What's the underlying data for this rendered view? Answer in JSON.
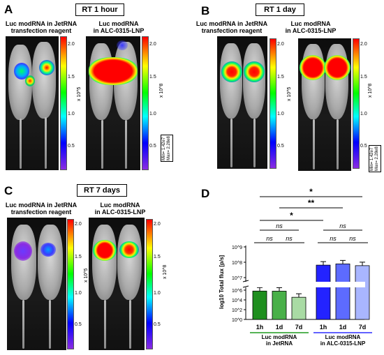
{
  "panels": {
    "A": {
      "letter": "A",
      "title": "RT 1 hour",
      "left_caption": "Luc modRNA in JetRNA\ntransfection reagent",
      "right_caption": "Luc modRNA\nin ALC-0315-LNP",
      "left_scale": {
        "ticks": [
          "2.0",
          "1.5",
          "1.0",
          "0.5"
        ],
        "unit": "x 10^5"
      },
      "right_scale": {
        "ticks": [
          "2.0",
          "1.5",
          "1.0",
          "0.5"
        ],
        "unit": "x 10^8"
      },
      "minmax": "Min= 1.42e7\nMax= 2.28e8"
    },
    "B": {
      "letter": "B",
      "title": "RT 1 day",
      "left_caption": "Luc modRNA in JetRNA\ntransfection reagent",
      "right_caption": "Luc modRNA\nin ALC-0315-LNP",
      "left_scale": {
        "ticks": [
          "2.0",
          "1.5",
          "1.0",
          "0.5"
        ],
        "unit": "x 10^5"
      },
      "right_scale": {
        "ticks": [
          "2.0",
          "1.5",
          "1.0",
          "0.5"
        ],
        "unit": "x 10^8"
      },
      "minmax": "Min= 1.42e7\nMax= 2.28e8"
    },
    "C": {
      "letter": "C",
      "title": "RT 7 days",
      "left_caption": "Luc modRNA in JetRNA\ntransfection reagent",
      "right_caption": "Luc modRNA\nin ALC-0315-LNP",
      "left_scale": {
        "ticks": [
          "2.0",
          "1.5",
          "1.0",
          "0.5"
        ],
        "unit": "x 10^5"
      },
      "right_scale": {
        "ticks": [
          "2.0",
          "1.5",
          "1.0",
          "0.5"
        ],
        "unit": "x 10^8"
      }
    },
    "D": {
      "letter": "D"
    }
  },
  "chart_data": {
    "type": "bar",
    "ylabel": "log10 Total flux [p/s]",
    "y_ticks_upper": [
      "10^9",
      "10^8",
      "10^7"
    ],
    "y_ticks_lower": [
      "10^6",
      "10^4",
      "10^2",
      "10^0"
    ],
    "categories": [
      "1h",
      "1d",
      "7d",
      "1h",
      "1d",
      "7d"
    ],
    "groups": [
      {
        "label": "Luc modRNA\nin JetRNA",
        "color": "#1f9a1f"
      },
      {
        "label": "Luc modRNA\nin ALC-0315-LNP",
        "color": "#2d2dff"
      }
    ],
    "values": [
      650000,
      620000,
      35000,
      65000000,
      78000000,
      60000000
    ],
    "bar_colors": [
      "#1f8f1f",
      "#49b049",
      "#a9dba4",
      "#2323ff",
      "#5d6bff",
      "#a9b6ff"
    ],
    "significance": [
      {
        "label": "*",
        "from": 0,
        "to": 5
      },
      {
        "label": "**",
        "from": 1,
        "to": 4
      },
      {
        "label": "*",
        "from": 0,
        "to": 3
      },
      {
        "label": "ns",
        "from": 0,
        "to": 1
      },
      {
        "label": "ns",
        "from": 1,
        "to": 2
      },
      {
        "label": "ns",
        "from": 0,
        "to": 2
      },
      {
        "label": "ns",
        "from": 3,
        "to": 4
      },
      {
        "label": "ns",
        "from": 4,
        "to": 5
      },
      {
        "label": "ns",
        "from": 3,
        "to": 5
      }
    ]
  }
}
